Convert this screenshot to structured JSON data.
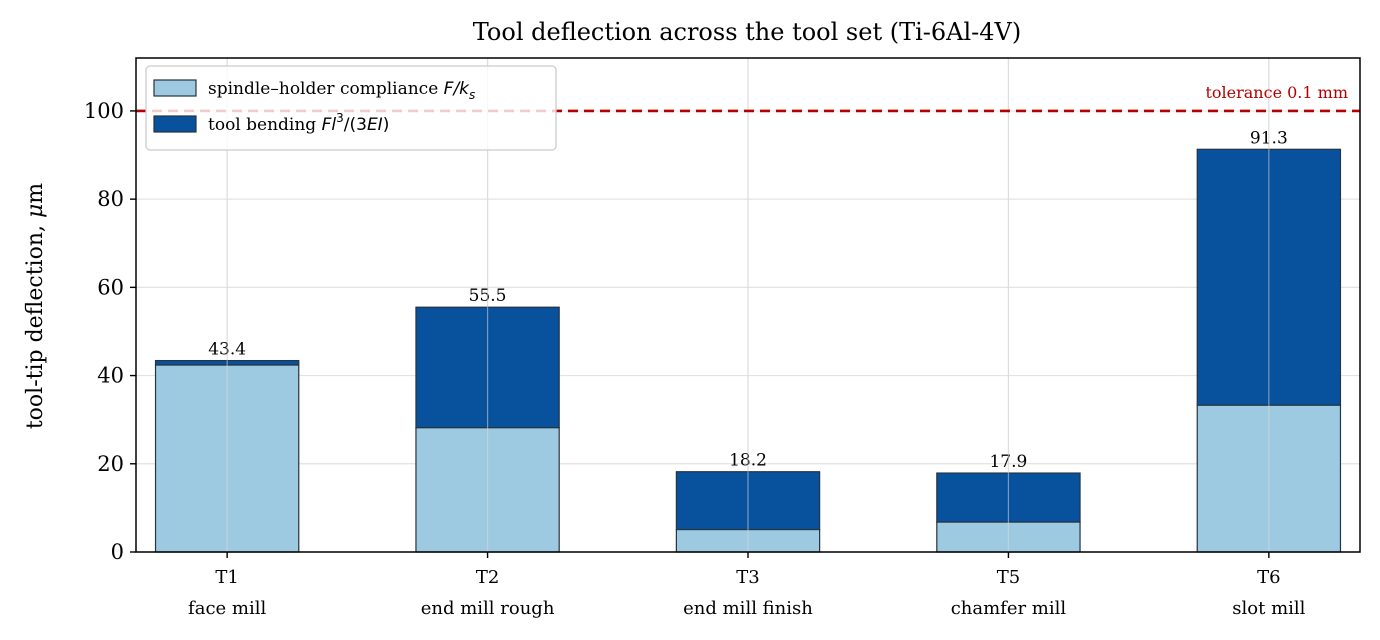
{
  "chart_data": {
    "type": "bar",
    "stacked": true,
    "title": "Tool deflection across the tool set (Ti-6Al-4V)",
    "ylabel": "tool-tip deflection, μm",
    "xlabel": "",
    "ylim": [
      0,
      112
    ],
    "yticks": [
      0,
      20,
      40,
      60,
      80,
      100
    ],
    "grid": true,
    "legend_position": "top-left",
    "categories": [
      {
        "code": "T1",
        "name": "face mill"
      },
      {
        "code": "T2",
        "name": "end mill rough"
      },
      {
        "code": "T3",
        "name": "end mill finish"
      },
      {
        "code": "T5",
        "name": "chamfer mill"
      },
      {
        "code": "T6",
        "name": "slot mill"
      }
    ],
    "series": [
      {
        "name": "spindle–holder compliance F/k_s",
        "legend_main": "spindle–holder compliance ",
        "legend_math": "F/k",
        "legend_sub": "s",
        "color": "#9ecae1",
        "values": [
          42.4,
          28.2,
          5.1,
          6.8,
          33.3
        ]
      },
      {
        "name": "tool bending Fl³/(3EI)",
        "legend_main": "tool bending ",
        "legend_math": "Fl",
        "legend_sup": "3",
        "legend_tail": "/(3EI)",
        "color": "#08519c",
        "values": [
          1.0,
          27.3,
          13.1,
          11.1,
          58.0
        ]
      }
    ],
    "totals": [
      "43.4",
      "55.5",
      "18.2",
      "17.9",
      "91.3"
    ],
    "threshold": {
      "value": 100,
      "label": "tolerance 0.1 mm",
      "color": "#b40000"
    }
  }
}
